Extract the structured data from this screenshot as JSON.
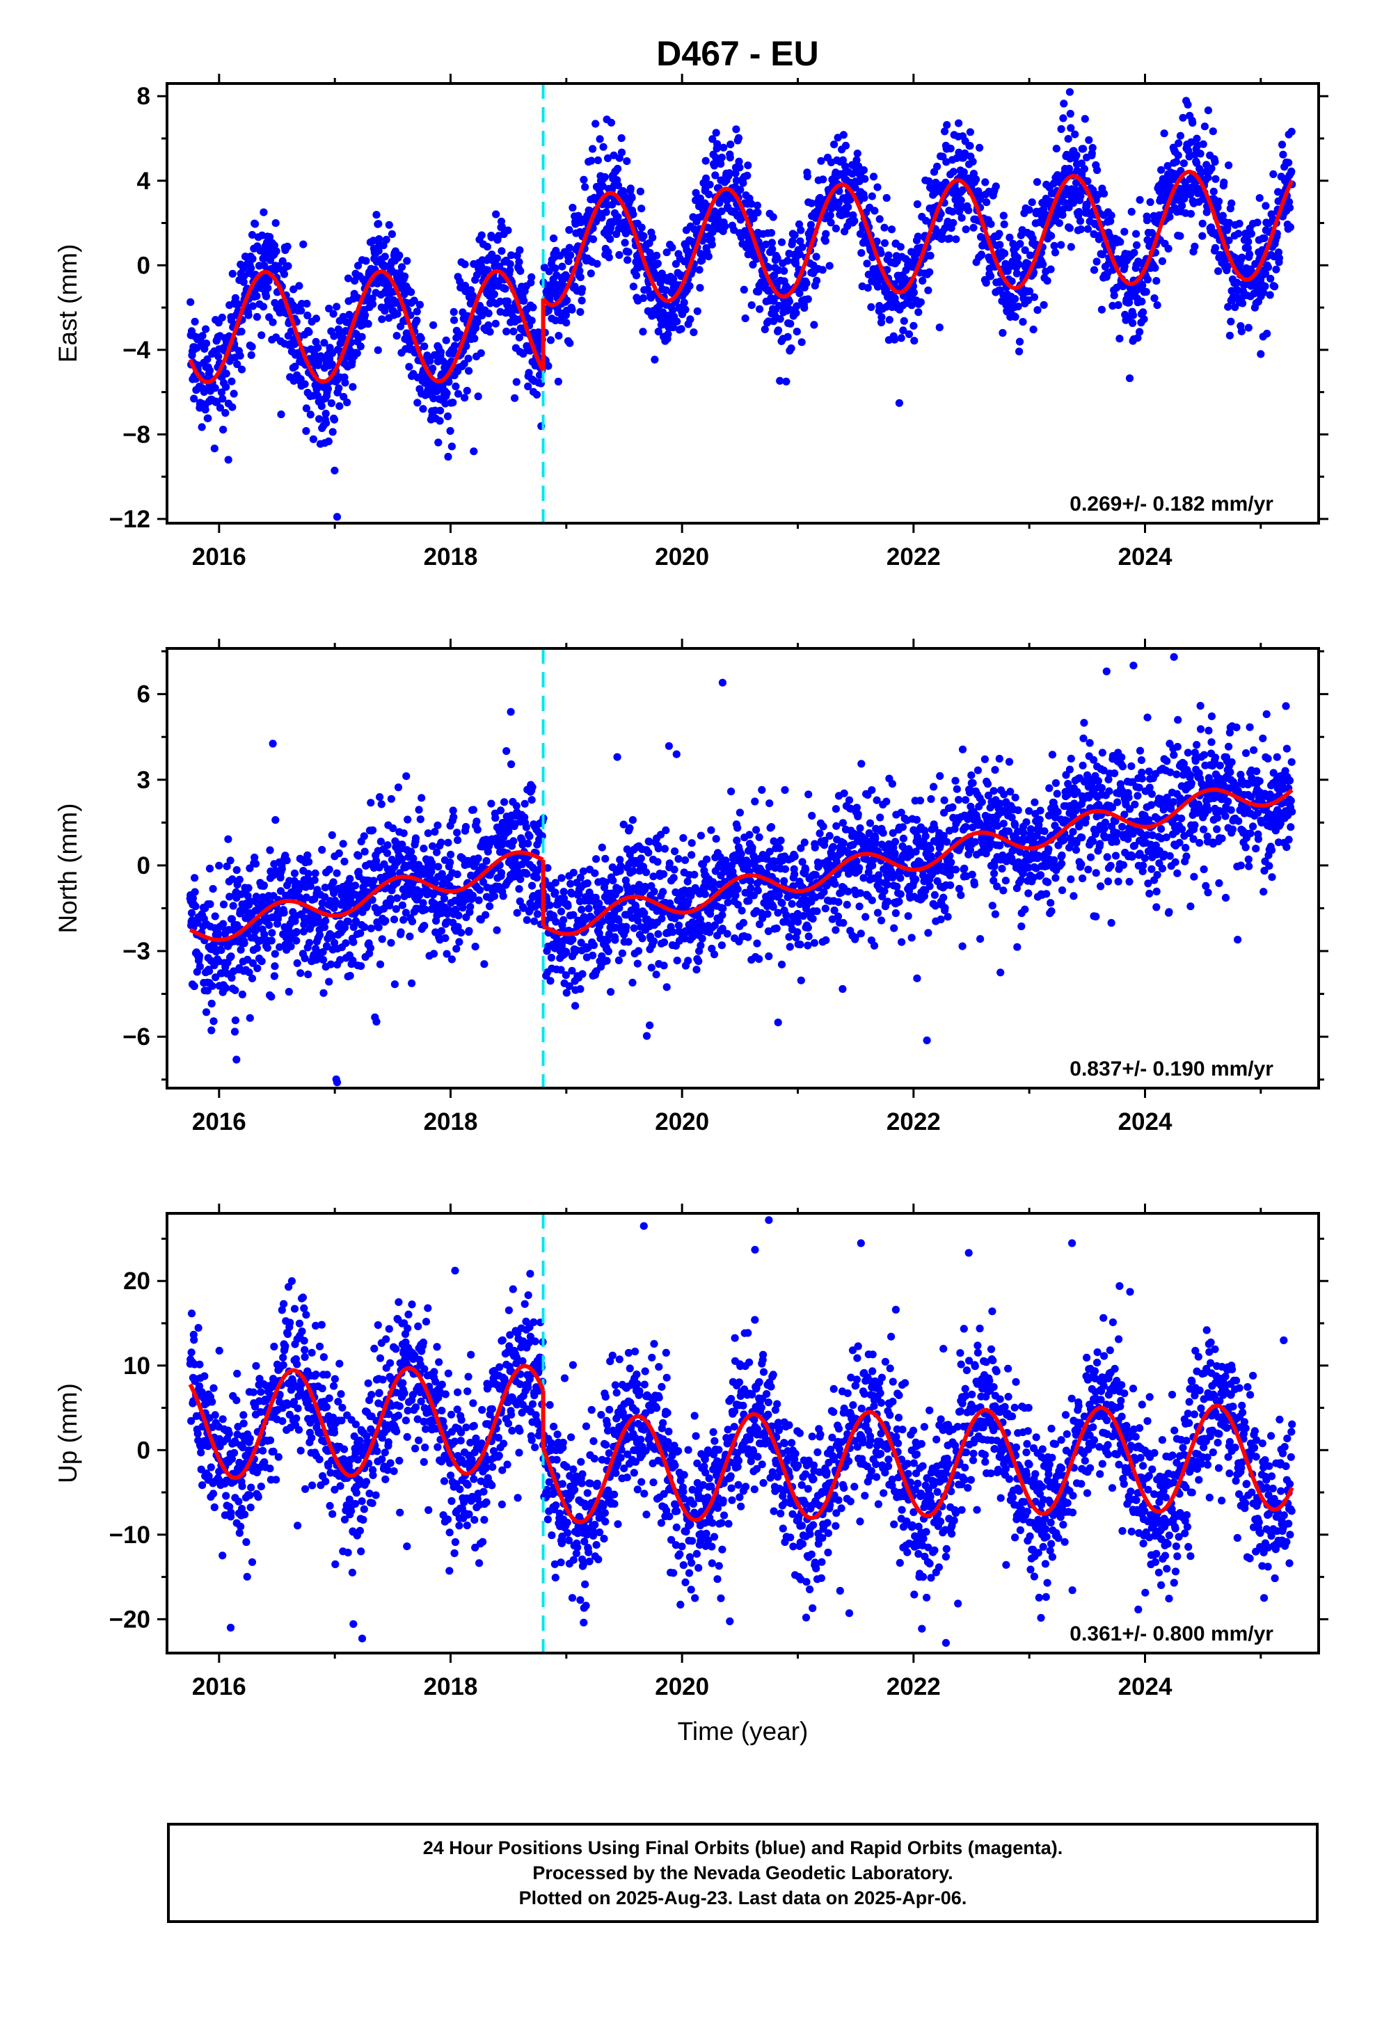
{
  "title": "D467 - EU",
  "colors": {
    "points": "#0000ff",
    "model": "#ff0000",
    "offset_line": "#00e5ee",
    "frame": "#000000"
  },
  "offset_epoch": 2018.8,
  "chart_data": [
    {
      "type": "scatter",
      "ylabel": "East (mm)",
      "xlabel": "",
      "xlim": [
        2015.55,
        2025.5
      ],
      "ylim": [
        -12.2,
        8.6
      ],
      "x_ticks": [
        2016,
        2018,
        2020,
        2022,
        2024
      ],
      "x_tick_labels": [
        "2016",
        "2018",
        "2020",
        "2022",
        "2024"
      ],
      "y_ticks": [
        -12,
        -8,
        -4,
        0,
        4,
        8
      ],
      "y_tick_labels": [
        "−12",
        "−8",
        "−4",
        "0",
        "4",
        "8"
      ],
      "velocity_label": "0.269+/- 0.182 mm/yr",
      "model": {
        "start": 2015.75,
        "end": 2025.27,
        "offset_epoch": 2018.8,
        "offset": 3.4,
        "segments": [
          {
            "t0": 2015.75,
            "t1": 2018.8,
            "c": -2.9,
            "trend": 0.02,
            "amp": 2.6,
            "peak_phase": 0.4
          },
          {
            "t0": 2018.8,
            "t1": 2025.27,
            "c": 1.35,
            "trend": 0.2,
            "amp": 2.6,
            "peak_phase": 0.38
          }
        ]
      },
      "scatter": {
        "noise_sd": 1.3,
        "noise_extra": 1.0
      },
      "outliers": [
        {
          "x": 2017.02,
          "y": -11.9
        },
        {
          "x": 2016.08,
          "y": -9.2
        },
        {
          "x": 2020.9,
          "y": -5.5
        },
        {
          "x": 2023.35,
          "y": 8.2
        },
        {
          "x": 2024.37,
          "y": 7.6
        },
        {
          "x": 2019.35,
          "y": 6.9
        },
        {
          "x": 2025.0,
          "y": -4.2
        },
        {
          "x": 2018.2,
          "y": -8.8
        }
      ]
    },
    {
      "type": "scatter",
      "ylabel": "North (mm)",
      "xlabel": "",
      "xlim": [
        2015.55,
        2025.5
      ],
      "ylim": [
        -7.8,
        7.6
      ],
      "x_ticks": [
        2016,
        2018,
        2020,
        2022,
        2024
      ],
      "x_tick_labels": [
        "2016",
        "2018",
        "2020",
        "2022",
        "2024"
      ],
      "y_ticks": [
        -6,
        -3,
        0,
        3,
        6
      ],
      "y_tick_labels": [
        "−6",
        "−3",
        "0",
        "3",
        "6"
      ],
      "velocity_label": "0.837+/- 0.190 mm/yr",
      "model": {
        "start": 2015.75,
        "end": 2025.27,
        "offset_epoch": 2018.8,
        "offset": -3.0,
        "segments": [
          {
            "t0": 2015.75,
            "t1": 2018.8,
            "c": -1.1,
            "trend": 0.85,
            "amp": 0.45,
            "peak_phase": 0.55
          },
          {
            "t0": 2018.8,
            "t1": 2025.27,
            "c": 0.3,
            "trend": 0.75,
            "amp": 0.45,
            "peak_phase": 0.55
          }
        ]
      },
      "scatter": {
        "noise_sd": 1.1,
        "noise_extra": 0.9
      },
      "outliers": [
        {
          "x": 2024.25,
          "y": 7.3
        },
        {
          "x": 2023.9,
          "y": 7.0
        },
        {
          "x": 2020.35,
          "y": 6.4
        },
        {
          "x": 2017.02,
          "y": -7.6
        },
        {
          "x": 2016.15,
          "y": -6.8
        },
        {
          "x": 2019.72,
          "y": -5.6
        },
        {
          "x": 2024.8,
          "y": -2.6
        },
        {
          "x": 2020.83,
          "y": -5.5
        }
      ]
    },
    {
      "type": "scatter",
      "ylabel": "Up (mm)",
      "xlabel": "Time (year)",
      "xlim": [
        2015.55,
        2025.5
      ],
      "ylim": [
        -24,
        28
      ],
      "x_ticks": [
        2016,
        2018,
        2020,
        2022,
        2024
      ],
      "x_tick_labels": [
        "2016",
        "2018",
        "2020",
        "2022",
        "2024"
      ],
      "y_ticks": [
        -20,
        -10,
        0,
        10,
        20
      ],
      "y_tick_labels": [
        "−20",
        "−10",
        "0",
        "10",
        "20"
      ],
      "velocity_label": "0.361+/- 0.800 mm/yr",
      "model": {
        "start": 2015.75,
        "end": 2025.27,
        "offset_epoch": 2018.8,
        "offset": -6.0,
        "segments": [
          {
            "t0": 2015.75,
            "t1": 2018.8,
            "c": 3.3,
            "trend": 0.25,
            "amp": 6.3,
            "peak_phase": 0.64
          },
          {
            "t0": 2018.8,
            "t1": 2025.27,
            "c": -1.6,
            "trend": 0.25,
            "amp": 6.2,
            "peak_phase": 0.62
          }
        ]
      },
      "scatter": {
        "noise_sd": 4.3,
        "noise_extra": 3.5
      },
      "outliers": [
        {
          "x": 2020.75,
          "y": 27.2
        },
        {
          "x": 2019.67,
          "y": 26.5
        },
        {
          "x": 2020.63,
          "y": 23.7
        },
        {
          "x": 2016.1,
          "y": -21.0
        },
        {
          "x": 2022.28,
          "y": -22.8
        },
        {
          "x": 2019.15,
          "y": -20.4
        },
        {
          "x": 2016.6,
          "y": 19.3
        },
        {
          "x": 2023.78,
          "y": 19.4
        }
      ]
    }
  ],
  "caption": {
    "line1": "24 Hour Positions Using Final Orbits (blue) and Rapid Orbits (magenta).",
    "line2": "Processed by the Nevada Geodetic Laboratory.",
    "line3": "Plotted on 2025-Aug-23. Last data on 2025-Apr-06."
  }
}
